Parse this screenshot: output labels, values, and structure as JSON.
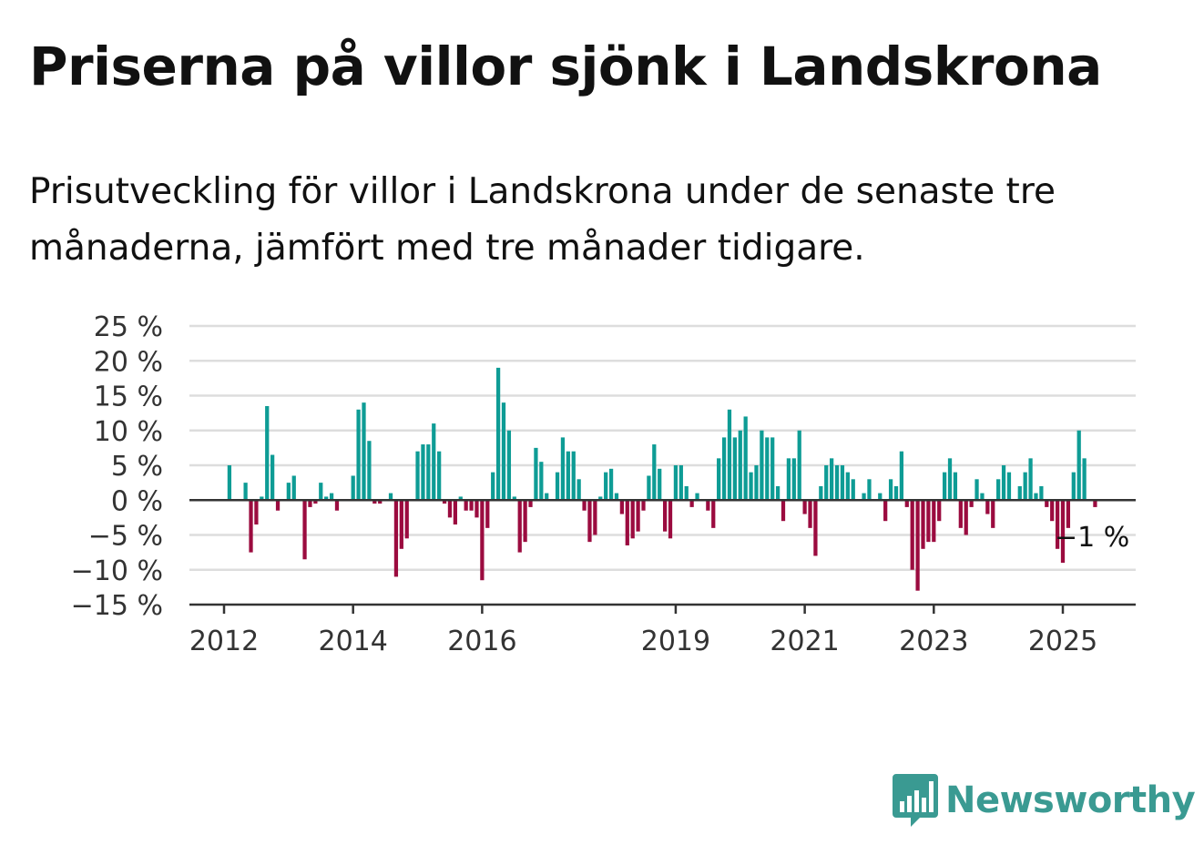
{
  "title": "Priserna på villor sjönk i Landskrona",
  "subtitle": "Prisutveckling för villor i Landskrona under de senaste tre månaderna, jämfört med tre månader tidigare.",
  "brand": {
    "name": "Newsworthy",
    "color": "#3a9a92",
    "icon": "bar-chart-speech-bubble-icon"
  },
  "colors": {
    "positive": "#0e9c95",
    "negative": "#9b0b3f",
    "grid": "#dddddd",
    "axis": "#333333"
  },
  "chart_data": {
    "type": "bar",
    "y_unit": "%",
    "ylim": [
      -15,
      25
    ],
    "y_ticks": [
      -15,
      -10,
      -5,
      0,
      5,
      10,
      15,
      20,
      25
    ],
    "y_tick_labels": [
      "−15 %",
      "−10 %",
      "−5 %",
      "0 %",
      "5 %",
      "10 %",
      "15 %",
      "20 %",
      "25 %"
    ],
    "x_ticks": [
      2012,
      2014,
      2016,
      2019,
      2021,
      2023,
      2025
    ],
    "grid": true,
    "legend": "none",
    "last_value_label": "−1 %",
    "values": [
      {
        "date": "2012-02",
        "value": 5
      },
      {
        "date": "2012-05",
        "value": 2.5
      },
      {
        "date": "2012-06",
        "value": -7.5
      },
      {
        "date": "2012-07",
        "value": -3.5
      },
      {
        "date": "2012-08",
        "value": 0.5
      },
      {
        "date": "2012-09",
        "value": 13.5
      },
      {
        "date": "2012-10",
        "value": 6.5
      },
      {
        "date": "2012-11",
        "value": -1.5
      },
      {
        "date": "2013-01",
        "value": 2.5
      },
      {
        "date": "2013-02",
        "value": 3.5
      },
      {
        "date": "2013-04",
        "value": -8.5
      },
      {
        "date": "2013-05",
        "value": -1
      },
      {
        "date": "2013-06",
        "value": -0.5
      },
      {
        "date": "2013-07",
        "value": 2.5
      },
      {
        "date": "2013-08",
        "value": 0.5
      },
      {
        "date": "2013-09",
        "value": 1
      },
      {
        "date": "2013-10",
        "value": -1.5
      },
      {
        "date": "2014-01",
        "value": 3.5
      },
      {
        "date": "2014-02",
        "value": 13
      },
      {
        "date": "2014-03",
        "value": 14
      },
      {
        "date": "2014-04",
        "value": 8.5
      },
      {
        "date": "2014-05",
        "value": -0.5
      },
      {
        "date": "2014-06",
        "value": -0.5
      },
      {
        "date": "2014-08",
        "value": 1
      },
      {
        "date": "2014-09",
        "value": -11
      },
      {
        "date": "2014-10",
        "value": -7
      },
      {
        "date": "2014-11",
        "value": -5.5
      },
      {
        "date": "2015-01",
        "value": 7
      },
      {
        "date": "2015-02",
        "value": 8
      },
      {
        "date": "2015-03",
        "value": 8
      },
      {
        "date": "2015-04",
        "value": 11
      },
      {
        "date": "2015-05",
        "value": 7
      },
      {
        "date": "2015-06",
        "value": -0.5
      },
      {
        "date": "2015-07",
        "value": -2.5
      },
      {
        "date": "2015-08",
        "value": -3.5
      },
      {
        "date": "2015-09",
        "value": 0.5
      },
      {
        "date": "2015-10",
        "value": -1.5
      },
      {
        "date": "2015-11",
        "value": -1.5
      },
      {
        "date": "2015-12",
        "value": -2.5
      },
      {
        "date": "2016-01",
        "value": -11.5
      },
      {
        "date": "2016-02",
        "value": -4
      },
      {
        "date": "2016-03",
        "value": 4
      },
      {
        "date": "2016-04",
        "value": 19
      },
      {
        "date": "2016-05",
        "value": 14
      },
      {
        "date": "2016-06",
        "value": 10
      },
      {
        "date": "2016-07",
        "value": 0.5
      },
      {
        "date": "2016-08",
        "value": -7.5
      },
      {
        "date": "2016-09",
        "value": -6
      },
      {
        "date": "2016-10",
        "value": -1
      },
      {
        "date": "2016-11",
        "value": 7.5
      },
      {
        "date": "2016-12",
        "value": 5.5
      },
      {
        "date": "2017-01",
        "value": 1
      },
      {
        "date": "2017-03",
        "value": 4
      },
      {
        "date": "2017-04",
        "value": 9
      },
      {
        "date": "2017-05",
        "value": 7
      },
      {
        "date": "2017-06",
        "value": 7
      },
      {
        "date": "2017-07",
        "value": 3
      },
      {
        "date": "2017-08",
        "value": -1.5
      },
      {
        "date": "2017-09",
        "value": -6
      },
      {
        "date": "2017-10",
        "value": -5
      },
      {
        "date": "2017-11",
        "value": 0.5
      },
      {
        "date": "2017-12",
        "value": 4
      },
      {
        "date": "2018-01",
        "value": 4.5
      },
      {
        "date": "2018-02",
        "value": 1
      },
      {
        "date": "2018-03",
        "value": -2
      },
      {
        "date": "2018-04",
        "value": -6.5
      },
      {
        "date": "2018-05",
        "value": -5.5
      },
      {
        "date": "2018-06",
        "value": -4.5
      },
      {
        "date": "2018-07",
        "value": -1.5
      },
      {
        "date": "2018-08",
        "value": 3.5
      },
      {
        "date": "2018-09",
        "value": 8
      },
      {
        "date": "2018-10",
        "value": 4.5
      },
      {
        "date": "2018-11",
        "value": -4.5
      },
      {
        "date": "2018-12",
        "value": -5.5
      },
      {
        "date": "2019-01",
        "value": 5
      },
      {
        "date": "2019-02",
        "value": 5
      },
      {
        "date": "2019-03",
        "value": 2
      },
      {
        "date": "2019-04",
        "value": -1
      },
      {
        "date": "2019-05",
        "value": 1
      },
      {
        "date": "2019-07",
        "value": -1.5
      },
      {
        "date": "2019-08",
        "value": -4
      },
      {
        "date": "2019-09",
        "value": 6
      },
      {
        "date": "2019-10",
        "value": 9
      },
      {
        "date": "2019-11",
        "value": 13
      },
      {
        "date": "2019-12",
        "value": 9
      },
      {
        "date": "2020-01",
        "value": 10
      },
      {
        "date": "2020-02",
        "value": 12
      },
      {
        "date": "2020-03",
        "value": 4
      },
      {
        "date": "2020-04",
        "value": 5
      },
      {
        "date": "2020-05",
        "value": 10
      },
      {
        "date": "2020-06",
        "value": 9
      },
      {
        "date": "2020-07",
        "value": 9
      },
      {
        "date": "2020-08",
        "value": 2
      },
      {
        "date": "2020-09",
        "value": -3
      },
      {
        "date": "2020-10",
        "value": 6
      },
      {
        "date": "2020-11",
        "value": 6
      },
      {
        "date": "2020-12",
        "value": 10
      },
      {
        "date": "2021-01",
        "value": -2
      },
      {
        "date": "2021-02",
        "value": -4
      },
      {
        "date": "2021-03",
        "value": -8
      },
      {
        "date": "2021-04",
        "value": 2
      },
      {
        "date": "2021-05",
        "value": 5
      },
      {
        "date": "2021-06",
        "value": 6
      },
      {
        "date": "2021-07",
        "value": 5
      },
      {
        "date": "2021-08",
        "value": 5
      },
      {
        "date": "2021-09",
        "value": 4
      },
      {
        "date": "2021-10",
        "value": 3
      },
      {
        "date": "2021-12",
        "value": 1
      },
      {
        "date": "2022-01",
        "value": 3
      },
      {
        "date": "2022-03",
        "value": 1
      },
      {
        "date": "2022-04",
        "value": -3
      },
      {
        "date": "2022-05",
        "value": 3
      },
      {
        "date": "2022-06",
        "value": 2
      },
      {
        "date": "2022-07",
        "value": 7
      },
      {
        "date": "2022-08",
        "value": -1
      },
      {
        "date": "2022-09",
        "value": -10
      },
      {
        "date": "2022-10",
        "value": -13
      },
      {
        "date": "2022-11",
        "value": -7
      },
      {
        "date": "2022-12",
        "value": -6
      },
      {
        "date": "2023-01",
        "value": -6
      },
      {
        "date": "2023-02",
        "value": -3
      },
      {
        "date": "2023-03",
        "value": 4
      },
      {
        "date": "2023-04",
        "value": 6
      },
      {
        "date": "2023-05",
        "value": 4
      },
      {
        "date": "2023-06",
        "value": -4
      },
      {
        "date": "2023-07",
        "value": -5
      },
      {
        "date": "2023-08",
        "value": -1
      },
      {
        "date": "2023-09",
        "value": 3
      },
      {
        "date": "2023-10",
        "value": 1
      },
      {
        "date": "2023-11",
        "value": -2
      },
      {
        "date": "2023-12",
        "value": -4
      },
      {
        "date": "2024-01",
        "value": 3
      },
      {
        "date": "2024-02",
        "value": 5
      },
      {
        "date": "2024-03",
        "value": 4
      },
      {
        "date": "2024-05",
        "value": 2
      },
      {
        "date": "2024-06",
        "value": 4
      },
      {
        "date": "2024-07",
        "value": 6
      },
      {
        "date": "2024-08",
        "value": 1
      },
      {
        "date": "2024-09",
        "value": 2
      },
      {
        "date": "2024-10",
        "value": -1
      },
      {
        "date": "2024-11",
        "value": -3
      },
      {
        "date": "2024-12",
        "value": -7
      },
      {
        "date": "2025-01",
        "value": -9
      },
      {
        "date": "2025-02",
        "value": -4
      },
      {
        "date": "2025-03",
        "value": 4
      },
      {
        "date": "2025-04",
        "value": 10
      },
      {
        "date": "2025-05",
        "value": 6
      },
      {
        "date": "2025-07",
        "value": -1
      }
    ]
  }
}
